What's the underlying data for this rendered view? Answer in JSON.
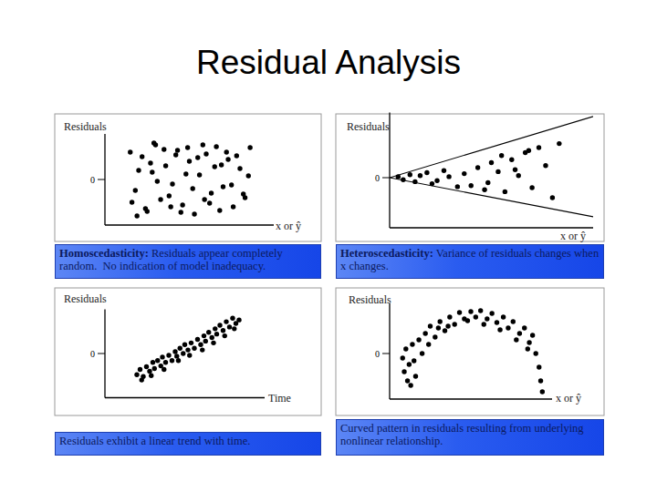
{
  "title": "Residual Analysis",
  "chart_data": [
    {
      "type": "scatter",
      "y_label": "Residuals",
      "x_label": "x or ŷ",
      "caption": {
        "term": "Homoscedasticity:",
        "text": " Residuals appear completely random.  No indication of model inadequacy."
      },
      "x": [
        15,
        18,
        22,
        25,
        28,
        30,
        33,
        36,
        40,
        43,
        46,
        50,
        53,
        56,
        60,
        63,
        66,
        70,
        73,
        76,
        80,
        83,
        86,
        16,
        20,
        24,
        27,
        31,
        35,
        38,
        42,
        45,
        48,
        52,
        55,
        58,
        62,
        65,
        68,
        72,
        75,
        78,
        82,
        85,
        19,
        29,
        39,
        49,
        59,
        69
      ],
      "values": [
        30,
        -12,
        25,
        -35,
        8,
        38,
        -22,
        15,
        -5,
        32,
        -28,
        20,
        -38,
        5,
        28,
        -15,
        36,
        -8,
        22,
        -30,
        12,
        -20,
        35,
        -25,
        10,
        -32,
        18,
        -2,
        33,
        -18,
        27,
        -36,
        6,
        -10,
        24,
        38,
        -26,
        14,
        -34,
        30,
        -6,
        26,
        -16,
        4,
        -40,
        40,
        -30,
        35,
        -22,
        16
      ],
      "xlim": [
        0,
        100
      ],
      "ylim": [
        -50,
        50
      ],
      "yticks": [
        0
      ],
      "tick_labels": "y",
      "color": "#000000",
      "marker": "circle"
    },
    {
      "type": "scatter",
      "y_label": "Residuals",
      "x_label": "x or ŷ",
      "caption": {
        "term": "Heteroscedasticity:",
        "text": " Variance of residuals changes when x changes."
      },
      "x": [
        5,
        8,
        12,
        15,
        18,
        22,
        25,
        28,
        32,
        35,
        40,
        44,
        48,
        52,
        56,
        60,
        64,
        68,
        72,
        76,
        80,
        84,
        88,
        92,
        96,
        100,
        58,
        66,
        74,
        82
      ],
      "values": [
        1,
        -2,
        3,
        -4,
        2,
        5,
        -6,
        -3,
        7,
        1,
        -9,
        4,
        -8,
        10,
        -12,
        15,
        6,
        -14,
        18,
        2,
        25,
        -10,
        30,
        12,
        -20,
        34,
        -5,
        22,
        8,
        27
      ],
      "lines": [
        {
          "x": [
            0,
            120
          ],
          "values": [
            0,
            61
          ]
        },
        {
          "x": [
            0,
            120
          ],
          "values": [
            0,
            -39
          ]
        }
      ],
      "xlim": [
        0,
        120
      ],
      "ylim": [
        -50,
        65
      ],
      "yticks": [
        0
      ],
      "tick_labels": "y",
      "color": "#000000",
      "marker": "circle"
    },
    {
      "type": "scatter",
      "y_label": "Residuals",
      "x_label": "Time",
      "caption": {
        "text": "Residuals exhibit a linear trend with time."
      },
      "x": [
        20,
        22,
        24,
        26,
        28,
        30,
        31,
        33,
        35,
        36,
        38,
        40,
        42,
        44,
        45,
        47,
        49,
        50,
        52,
        54,
        56,
        58,
        60,
        62,
        63,
        65,
        67,
        69,
        70,
        72,
        74,
        76,
        78,
        80,
        82,
        84,
        23,
        29,
        37,
        46,
        53,
        61,
        68,
        75,
        81
      ],
      "values": [
        -24,
        -18,
        -26,
        -15,
        -20,
        -10,
        -17,
        -8,
        -14,
        -4,
        -10,
        -2,
        -8,
        2,
        -3,
        6,
        0,
        10,
        4,
        12,
        6,
        16,
        10,
        20,
        14,
        24,
        18,
        28,
        22,
        32,
        26,
        36,
        30,
        40,
        34,
        38,
        -30,
        -25,
        -18,
        -8,
        -2,
        4,
        12,
        20,
        28
      ],
      "xlim": [
        0,
        100
      ],
      "ylim": [
        -50,
        50
      ],
      "yticks": [
        0
      ],
      "tick_labels": "y",
      "color": "#000000",
      "marker": "circle"
    },
    {
      "type": "scatter",
      "y_label": "Residuals",
      "x_label": "x or ŷ",
      "caption": {
        "text": "Curved pattern in residuals resulting from underlying nonlinear relationship."
      },
      "x": [
        8,
        9,
        10,
        11,
        12,
        14,
        16,
        18,
        20,
        22,
        25,
        28,
        31,
        34,
        37,
        40,
        43,
        46,
        50,
        53,
        56,
        60,
        63,
        66,
        70,
        73,
        76,
        80,
        83,
        86,
        88,
        90,
        92,
        93,
        94,
        15,
        24,
        36,
        48,
        58,
        68,
        78,
        85,
        13,
        30
      ],
      "values": [
        -5,
        -20,
        5,
        -30,
        -12,
        10,
        -25,
        15,
        0,
        22,
        30,
        18,
        35,
        25,
        40,
        32,
        45,
        38,
        46,
        40,
        47,
        38,
        44,
        34,
        40,
        28,
        35,
        22,
        28,
        12,
        20,
        0,
        -15,
        -30,
        -42,
        -8,
        10,
        30,
        36,
        32,
        26,
        15,
        5,
        -35,
        28
      ],
      "xlim": [
        0,
        100
      ],
      "ylim": [
        -50,
        55
      ],
      "yticks": [
        0
      ],
      "tick_labels": "y",
      "color": "#000000",
      "marker": "circle"
    }
  ]
}
